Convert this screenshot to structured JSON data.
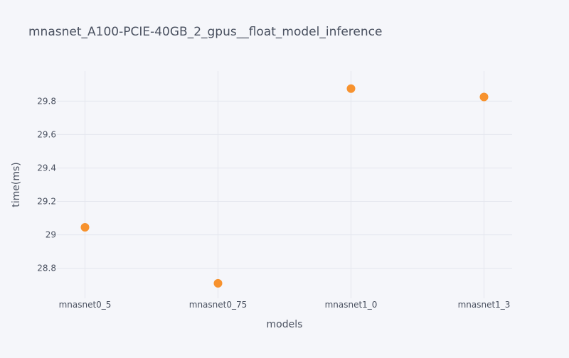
{
  "chart_data": {
    "type": "scatter",
    "title": "mnasnet_A100-PCIE-40GB_2_gpus__float_model_inference",
    "xlabel": "models",
    "ylabel": "time(ms)",
    "categories": [
      "mnasnet0_5",
      "mnasnet0_75",
      "mnasnet1_0",
      "mnasnet1_3"
    ],
    "series": [
      {
        "values": [
          29.045,
          28.71,
          29.875,
          29.825
        ]
      }
    ],
    "ylim": [
      28.62,
      29.98
    ],
    "yticks": [
      28.8,
      29,
      29.2,
      29.4,
      29.6,
      29.8
    ],
    "ytick_labels": [
      "28.8",
      "29",
      "29.2",
      "29.4",
      "29.6",
      "29.8"
    ],
    "grid": true,
    "marker_color": "#f7922e",
    "background_color": "#f5f6fa",
    "grid_color": "#e4e6ee"
  }
}
